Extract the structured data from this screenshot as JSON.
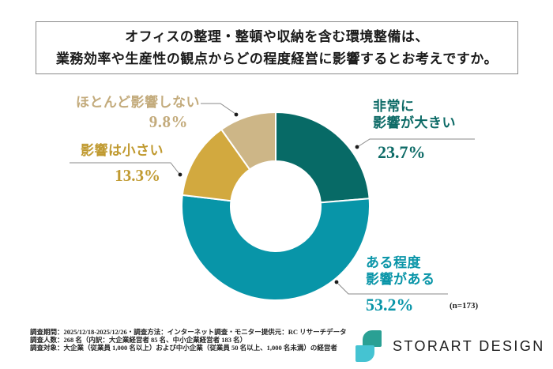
{
  "header": {
    "question_lines": [
      "オフィスの整理・整頓や収納を含む環境整備は、",
      "業務効率や生産性の観点からどの程度経営に影響するとお考えですか。"
    ]
  },
  "chart_data": {
    "type": "pie",
    "subtype": "donut",
    "title": "オフィスの整理・整頓や収納を含む環境整備は、業務効率や生産性の観点からどの程度経営に影響するとお考えですか。",
    "sample_label": "(n=173)",
    "sample_size": 173,
    "start_angle_deg": 0,
    "direction": "clockwise",
    "inner_radius_ratio": 0.48,
    "segments": [
      {
        "label": "非常に影響が大きい",
        "label_lines": [
          "非常に",
          "影響が大きい"
        ],
        "value": 23.7,
        "pct_label": "23.7%",
        "color": "#076a66",
        "text_color": "#0c6a66"
      },
      {
        "label": "ある程度影響がある",
        "label_lines": [
          "ある程度",
          "影響がある"
        ],
        "value": 53.2,
        "pct_label": "53.2%",
        "color": "#0895a8",
        "text_color": "#0995a8"
      },
      {
        "label": "影響は小さい",
        "label_lines": [
          "影響は小さい"
        ],
        "value": 13.3,
        "pct_label": "13.3%",
        "color": "#d2a93f",
        "text_color": "#c09a30"
      },
      {
        "label": "ほとんど影響しない",
        "label_lines": [
          "ほとんど影響しない"
        ],
        "value": 9.8,
        "pct_label": "9.8%",
        "color": "#cdb687",
        "text_color": "#c3ab7c"
      }
    ]
  },
  "survey_notes": {
    "lines": [
      "調査期間：2025/12/18-2025/12/26・調査方法：インターネット調査・モニター提供元：RC リサーチデータ",
      "調査人数：268 名（内訳：大企業経営者 85 名、中小企業経営者 183 名）",
      "調査対象：大企業（従業員 1,000 名以上）および中小企業（従業員 50 名以上、1,000 名未満）の経営者"
    ]
  },
  "logo": {
    "brand": "STORART DESIGN",
    "icon_colors": [
      "#2aa094",
      "#45c3d2"
    ]
  }
}
